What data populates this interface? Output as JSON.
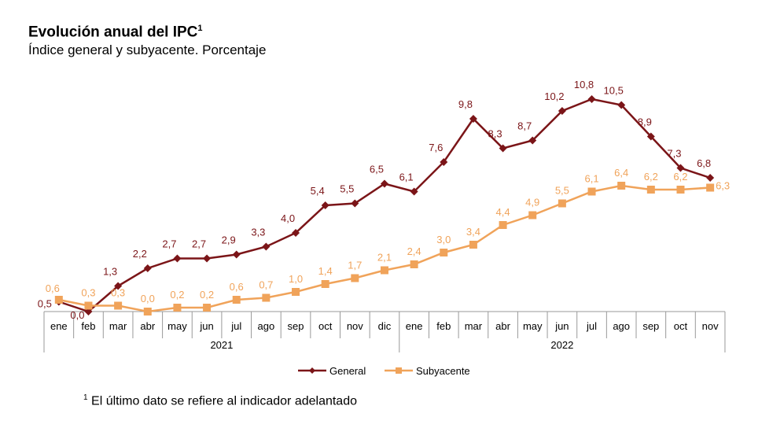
{
  "title": "Evolución anual del IPC",
  "title_sup": "1",
  "subtitle": "Índice general y subyacente. Porcentaje",
  "footnote_sup": "1",
  "footnote": "El último dato se refiere al indicador adelantado",
  "chart_data": {
    "type": "line",
    "categories": [
      "ene",
      "feb",
      "mar",
      "abr",
      "may",
      "jun",
      "jul",
      "ago",
      "sep",
      "oct",
      "nov",
      "dic",
      "ene",
      "feb",
      "mar",
      "abr",
      "may",
      "jun",
      "jul",
      "ago",
      "sep",
      "oct",
      "nov"
    ],
    "groups": [
      {
        "label": "2021",
        "count": 12
      },
      {
        "label": "2022",
        "count": 11
      }
    ],
    "series": [
      {
        "name": "General",
        "color": "#7b1518",
        "marker": "diamond",
        "values": [
          0.5,
          0.0,
          1.3,
          2.2,
          2.7,
          2.7,
          2.9,
          3.3,
          4.0,
          5.4,
          5.5,
          6.5,
          6.1,
          7.6,
          9.8,
          8.3,
          8.7,
          10.2,
          10.8,
          10.5,
          8.9,
          7.3,
          6.8
        ],
        "labels": [
          "0,5",
          "0,0",
          "1,3",
          "2,2",
          "2,7",
          "2,7",
          "2,9",
          "3,3",
          "4,0",
          "5,4",
          "5,5",
          "6,5",
          "6,1",
          "7,6",
          "9,8",
          "8,3",
          "8,7",
          "10,2",
          "10,8",
          "10,5",
          "8,9",
          "7,3",
          "6,8"
        ]
      },
      {
        "name": "Subyacente",
        "color": "#f0a35a",
        "marker": "square",
        "values": [
          0.6,
          0.3,
          0.3,
          0.0,
          0.2,
          0.2,
          0.6,
          0.7,
          1.0,
          1.4,
          1.7,
          2.1,
          2.4,
          3.0,
          3.4,
          4.4,
          4.9,
          5.5,
          6.1,
          6.4,
          6.2,
          6.2,
          6.3
        ],
        "labels": [
          "0,6",
          "0,3",
          "0,3",
          "0,0",
          "0,2",
          "0,2",
          "0,6",
          "0,7",
          "1,0",
          "1,4",
          "1,7",
          "2,1",
          "2,4",
          "3,0",
          "3,4",
          "4,4",
          "4,9",
          "5,5",
          "6,1",
          "6,4",
          "6,2",
          "6,2",
          "6,3"
        ]
      }
    ],
    "ylim": [
      0,
      11
    ],
    "grid": false,
    "legend": "bottom-center"
  }
}
